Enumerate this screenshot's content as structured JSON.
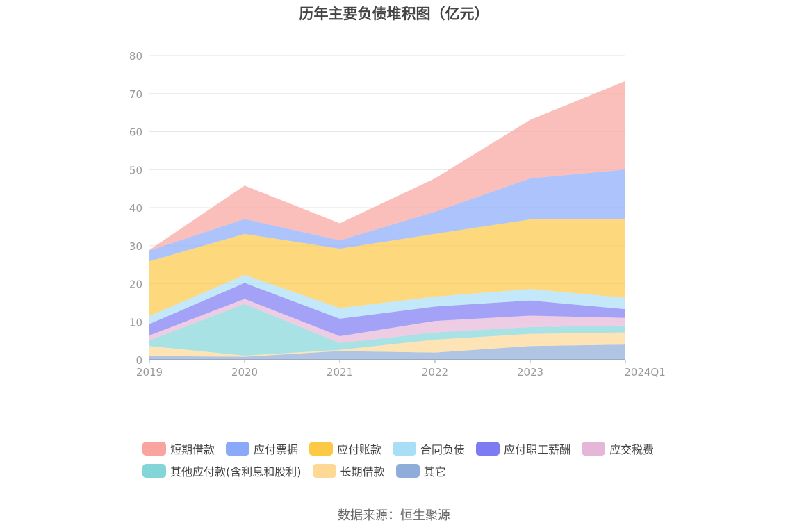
{
  "title": "历年主要负债堆积图（亿元）",
  "source": "数据来源：恒生聚源",
  "chart_data": {
    "type": "area",
    "stacked": true,
    "title": "历年主要负债堆积图（亿元）",
    "categories": [
      "2019",
      "2020",
      "2021",
      "2022",
      "2023",
      "2024Q1"
    ],
    "ylim": [
      0,
      80
    ],
    "yticks": [
      "0",
      "10",
      "20",
      "30",
      "40",
      "50",
      "60",
      "70",
      "80"
    ],
    "grid": true,
    "legend_position": "bottom",
    "series": [
      {
        "name": "其它",
        "color": "#8eadd9",
        "values": [
          1.0,
          0.8,
          2.3,
          1.9,
          3.6,
          4.0
        ]
      },
      {
        "name": "长期借款",
        "color": "#fdd995",
        "values": [
          2.6,
          0.3,
          0.3,
          3.4,
          3.2,
          3.2
        ]
      },
      {
        "name": "其他应付款(含利息和股利)",
        "color": "#84d5d8",
        "values": [
          1.5,
          13.6,
          1.8,
          1.9,
          1.8,
          1.8
        ]
      },
      {
        "name": "应交税费",
        "color": "#e6b6d9",
        "values": [
          1.3,
          1.3,
          1.8,
          3.0,
          3.0,
          2.0
        ]
      },
      {
        "name": "应付职工薪酬",
        "color": "#7d7bf2",
        "values": [
          3.0,
          4.2,
          4.6,
          3.8,
          4.0,
          2.3
        ]
      },
      {
        "name": "合同负债",
        "color": "#a9def7",
        "values": [
          2.1,
          2.1,
          2.8,
          2.6,
          3.0,
          3.0
        ]
      },
      {
        "name": "应付账款",
        "color": "#fcc845",
        "values": [
          14.4,
          10.8,
          15.6,
          16.5,
          18.3,
          20.6
        ]
      },
      {
        "name": "应付票据",
        "color": "#8aa9f9",
        "values": [
          2.8,
          3.9,
          2.2,
          5.8,
          10.8,
          13.1
        ]
      },
      {
        "name": "短期借款",
        "color": "#f9a49e",
        "values": [
          0.2,
          8.8,
          4.5,
          8.8,
          15.4,
          23.3
        ]
      }
    ],
    "legend_order": [
      "短期借款",
      "应付票据",
      "应付账款",
      "合同负债",
      "应付职工薪酬",
      "应交税费",
      "其他应付款(含利息和股利)",
      "长期借款",
      "其它"
    ]
  }
}
